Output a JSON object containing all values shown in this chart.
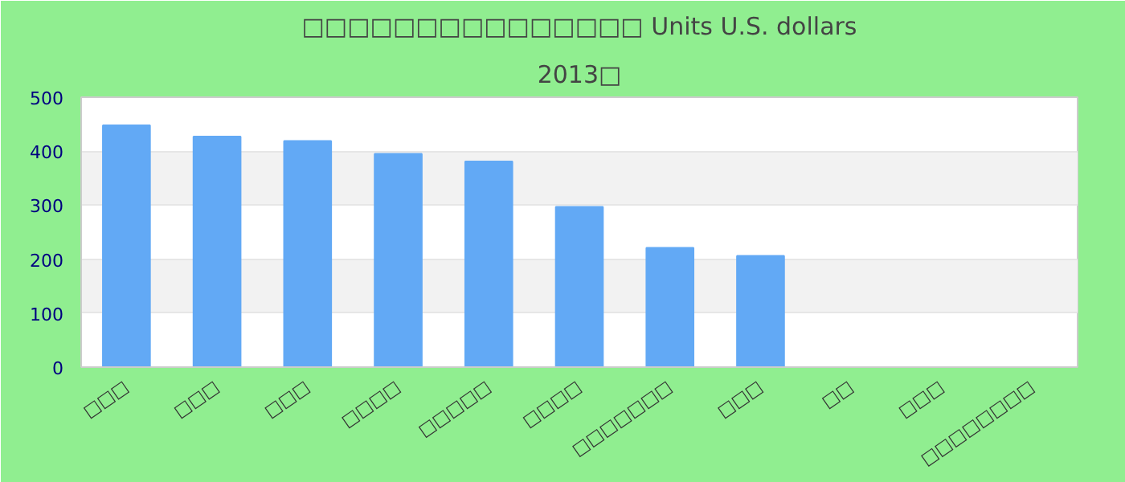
{
  "chart_data": {
    "type": "bar",
    "title": "□□□□□□□□□□□□□□□ Units U.S. dollars",
    "subtitle": "2013□",
    "categories": [
      "□□□",
      "□□□",
      "□□□",
      "□□□□",
      "□□□□□",
      "□□□□",
      "□□□□□□□",
      "□□□",
      "□□",
      "□□□",
      "□□□□□□□□"
    ],
    "values": [
      448,
      427,
      419,
      395,
      381,
      297,
      221,
      206,
      null,
      null,
      null
    ],
    "color": "#62a9f5",
    "ylim": [
      0,
      500
    ],
    "yticks": [
      0,
      100,
      200,
      300,
      400,
      500
    ],
    "grid": "y"
  }
}
